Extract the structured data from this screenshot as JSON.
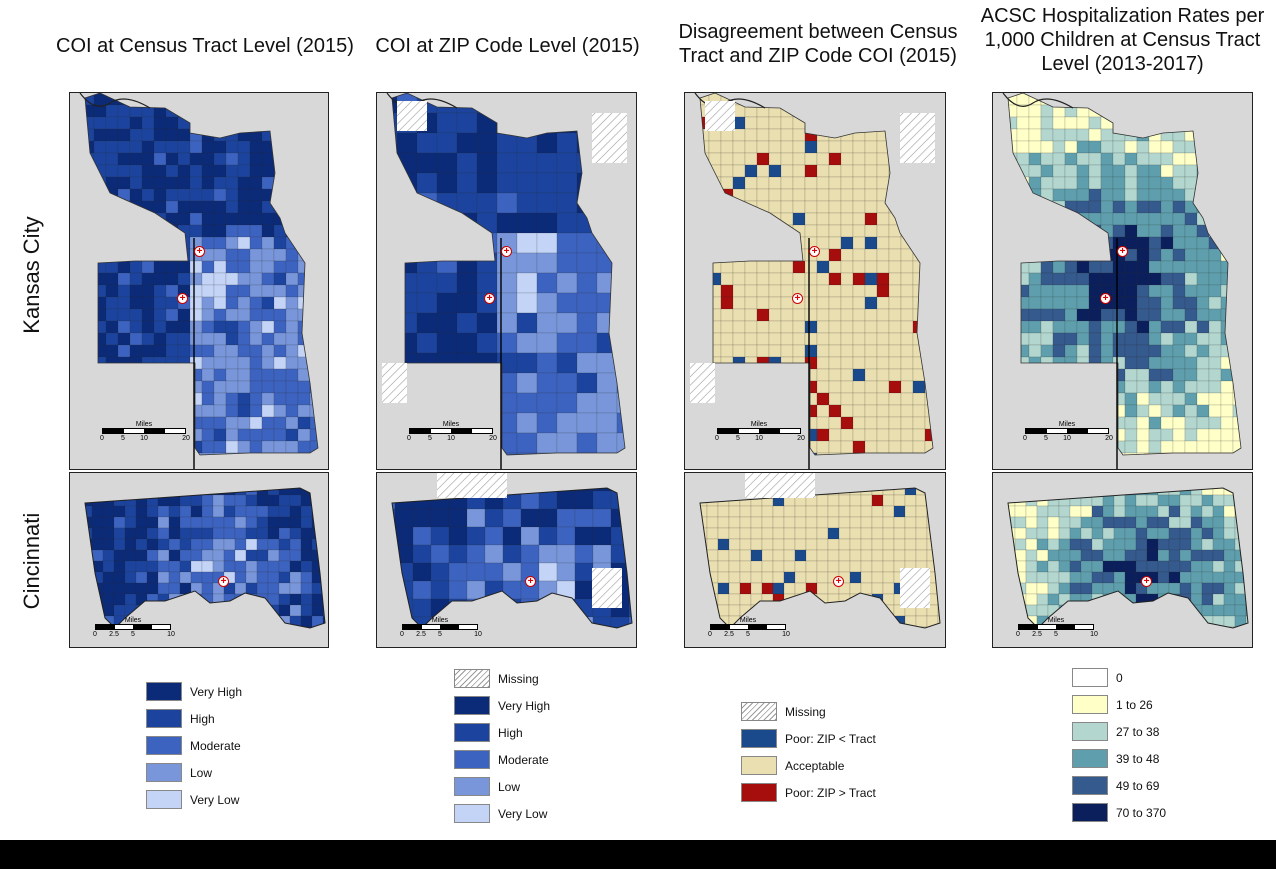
{
  "columns": [
    {
      "title": "COI at Census Tract Level (2015)"
    },
    {
      "title": "COI at ZIP Code Level (2015)"
    },
    {
      "title": "Disagreement between Census Tract and ZIP Code COI (2015)"
    },
    {
      "title": "ACSC Hospitalization Rates per 1,000 Children at Census Tract Level (2013-2017)"
    }
  ],
  "rows": [
    {
      "label": "Kansas City"
    },
    {
      "label": "Cincinnati"
    }
  ],
  "scalebars": {
    "kansas_city": {
      "unit": "Miles",
      "ticks": [
        "0",
        "5",
        "10",
        "20"
      ]
    },
    "cincinnati": {
      "unit": "Miles",
      "ticks": [
        "0",
        "2.5",
        "5",
        "10"
      ]
    }
  },
  "hospital_marker": {
    "symbol": "+"
  },
  "legends": {
    "coi_tract": [
      {
        "label": "Very High",
        "color": "#0b2a78"
      },
      {
        "label": "High",
        "color": "#1c449e"
      },
      {
        "label": "Moderate",
        "color": "#3d63c0"
      },
      {
        "label": "Low",
        "color": "#7896d9"
      },
      {
        "label": "Very Low",
        "color": "#c3d4f7"
      }
    ],
    "coi_zip": [
      {
        "label": "Missing",
        "color": "hatch"
      },
      {
        "label": "Very High",
        "color": "#0b2a78"
      },
      {
        "label": "High",
        "color": "#1c449e"
      },
      {
        "label": "Moderate",
        "color": "#3d63c0"
      },
      {
        "label": "Low",
        "color": "#7896d9"
      },
      {
        "label": "Very Low",
        "color": "#c3d4f7"
      }
    ],
    "disagreement": [
      {
        "label": "Missing",
        "color": "hatch"
      },
      {
        "label": "Poor: ZIP < Tract",
        "color": "#1a4a8c"
      },
      {
        "label": "Acceptable",
        "color": "#eadfb0"
      },
      {
        "label": "Poor: ZIP > Tract",
        "color": "#a60d0d"
      }
    ],
    "acsc": [
      {
        "label": "0",
        "color": "#ffffff"
      },
      {
        "label": "1 to 26",
        "color": "#ffffc8"
      },
      {
        "label": "27 to 38",
        "color": "#b3d6cf"
      },
      {
        "label": "39 to 48",
        "color": "#5f9fad"
      },
      {
        "label": "49 to 69",
        "color": "#355a8e"
      },
      {
        "label": "70 to 370",
        "color": "#0b1f5c"
      }
    ]
  }
}
